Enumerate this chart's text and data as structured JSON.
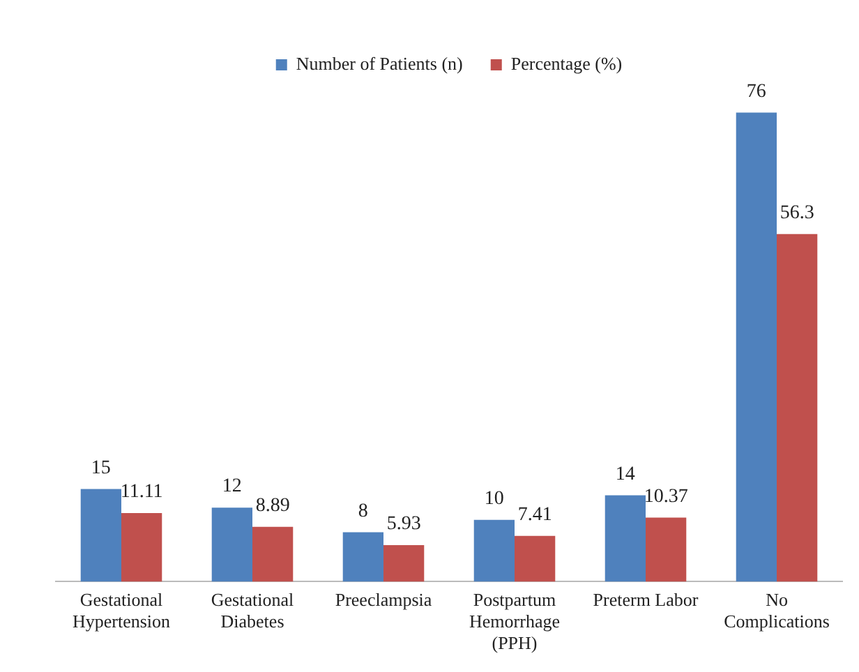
{
  "chart_data": {
    "type": "bar",
    "categories": [
      "Gestational Hypertension",
      "Gestational Diabetes",
      "Preeclampsia",
      "Postpartum Hemorrhage (PPH)",
      "Preterm Labor",
      "No Complications"
    ],
    "series": [
      {
        "name": "Number of Patients (n)",
        "color": "#4f81bd",
        "values": [
          15,
          12,
          8,
          10,
          14,
          76
        ]
      },
      {
        "name": "Percentage (%)",
        "color": "#c0504d",
        "values": [
          11.11,
          8.89,
          5.93,
          7.41,
          10.37,
          56.3
        ]
      }
    ],
    "data_labels": true,
    "legend": "top",
    "grid": false
  }
}
